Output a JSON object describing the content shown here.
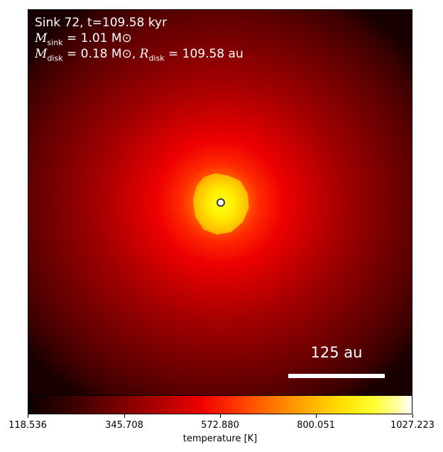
{
  "chart_data": {
    "type": "heatmap",
    "annotations": {
      "sink_line": "Sink 72, t=109.58 kyr",
      "msink_value": "1.01",
      "mdisk_value": "0.18",
      "rdisk_value": "109.58",
      "unit_solar_mass": "M⊙",
      "unit_au": "au",
      "scale_bar_label": "125 au"
    },
    "colorbar": {
      "label": "temperature [K]",
      "min": 118.536,
      "max": 1027.223,
      "ticks": [
        "118.536",
        "345.708",
        "572.880",
        "800.051",
        "1027.223"
      ],
      "colormap": "hot"
    },
    "sink_marker": "circle",
    "peak_position": "center"
  }
}
